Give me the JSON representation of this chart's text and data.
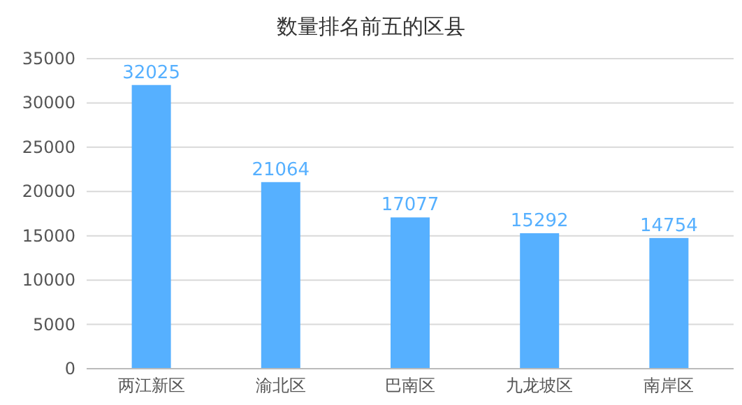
{
  "chart_data": {
    "type": "bar",
    "title": "数量排名前五的区县",
    "categories": [
      "两江新区",
      "渝北区",
      "巴南区",
      "九龙坡区",
      "南岸区"
    ],
    "values": [
      32025,
      21064,
      17077,
      15292,
      14754
    ],
    "color": "#56b0ff",
    "ylim": [
      0,
      35000
    ],
    "yticks": [
      0,
      5000,
      10000,
      15000,
      20000,
      25000,
      30000,
      35000
    ],
    "grid": "y",
    "data_labels": true
  }
}
